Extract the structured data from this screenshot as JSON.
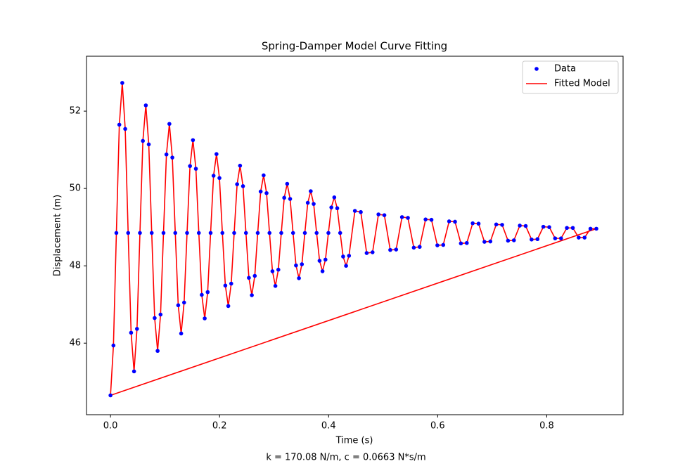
{
  "chart_data": {
    "type": "scatter-line",
    "title": "Spring-Damper Model Curve Fitting",
    "x_label": "Time (s)",
    "y_label": "Displacement (m)",
    "annotation": "k =  170.08 N/m, c =  0.0663 N*s/m",
    "xlim": [
      -0.044,
      0.94
    ],
    "ylim": [
      44.15,
      53.42
    ],
    "xticks": [
      {
        "value": 0,
        "label": "0.0"
      },
      {
        "value": 0.2,
        "label": "0.2"
      },
      {
        "value": 0.4,
        "label": "0.4"
      },
      {
        "value": 0.6,
        "label": "0.6"
      },
      {
        "value": 0.8,
        "label": "0.8"
      }
    ],
    "yticks": [
      46,
      48,
      50,
      52
    ],
    "legend": "upper right",
    "series": [
      {
        "name": "Data",
        "type": "scatter",
        "color": "#0000ff",
        "x": [
          0,
          0.0054,
          0.0108,
          0.0162,
          0.0216,
          0.027,
          0.0324,
          0.0378,
          0.0432,
          0.0486,
          0.054,
          0.0594,
          0.0648,
          0.0702,
          0.0756,
          0.081,
          0.0864,
          0.0918,
          0.0972,
          0.1026,
          0.108,
          0.1134,
          0.1188,
          0.1242,
          0.1296,
          0.135,
          0.1404,
          0.1458,
          0.1512,
          0.1566,
          0.162,
          0.1674,
          0.1728,
          0.1782,
          0.1836,
          0.189,
          0.1944,
          0.1998,
          0.2052,
          0.2106,
          0.216,
          0.2214,
          0.2268,
          0.2322,
          0.2376,
          0.243,
          0.2484,
          0.2538,
          0.2592,
          0.2646,
          0.27,
          0.2754,
          0.2808,
          0.2862,
          0.2916,
          0.297,
          0.3024,
          0.3078,
          0.3132,
          0.3186,
          0.324,
          0.3294,
          0.3348,
          0.3402,
          0.3456,
          0.351,
          0.3564,
          0.3618,
          0.3672,
          0.3726,
          0.378,
          0.3834,
          0.3888,
          0.3942,
          0.3996,
          0.405,
          0.4104,
          0.4158,
          0.4212,
          0.4266,
          0.432,
          0.4374,
          0.4482,
          0.459,
          0.4698,
          0.4806,
          0.4914,
          0.5022,
          0.513,
          0.5238,
          0.5346,
          0.5454,
          0.5562,
          0.567,
          0.5778,
          0.5886,
          0.5994,
          0.6102,
          0.621,
          0.6318,
          0.6426,
          0.6534,
          0.6642,
          0.675,
          0.6858,
          0.6966,
          0.7074,
          0.7182,
          0.729,
          0.7398,
          0.7506,
          0.7614,
          0.7722,
          0.783,
          0.7938,
          0.8046,
          0.8154,
          0.8262,
          0.837,
          0.8478,
          0.8586,
          0.8694,
          0.8802,
          0.891
        ],
        "values": [
          44.65,
          45.94,
          48.85,
          51.65,
          52.73,
          51.54,
          48.85,
          46.27,
          45.27,
          46.37,
          48.85,
          51.23,
          52.15,
          51.14,
          48.85,
          46.65,
          45.8,
          46.74,
          48.85,
          50.88,
          51.67,
          50.8,
          48.85,
          46.98,
          46.25,
          47.05,
          48.85,
          50.58,
          51.25,
          50.51,
          48.85,
          47.25,
          46.64,
          47.32,
          48.85,
          50.33,
          50.89,
          50.27,
          48.85,
          47.49,
          46.96,
          47.54,
          48.85,
          50.11,
          50.59,
          50.06,
          48.85,
          47.69,
          47.24,
          47.74,
          48.85,
          49.92,
          50.34,
          49.88,
          48.85,
          47.86,
          47.48,
          47.9,
          48.85,
          49.76,
          50.12,
          49.73,
          48.85,
          48.01,
          47.68,
          48.04,
          48.85,
          49.63,
          49.93,
          49.6,
          48.85,
          48.13,
          47.86,
          48.16,
          48.85,
          49.51,
          49.77,
          49.49,
          48.85,
          48.24,
          48.0,
          48.26,
          49.42,
          49.39,
          48.33,
          48.35,
          49.33,
          49.31,
          48.41,
          48.42,
          49.26,
          49.24,
          48.47,
          48.49,
          49.2,
          49.19,
          48.53,
          48.54,
          49.15,
          49.14,
          48.58,
          48.59,
          49.1,
          49.09,
          48.62,
          48.63,
          49.07,
          49.06,
          48.65,
          48.66,
          49.04,
          49.03,
          48.68,
          48.69,
          49.01,
          49.0,
          48.71,
          48.71,
          48.98,
          48.98,
          48.73,
          48.73,
          48.96,
          48.96
        ]
      },
      {
        "name": "Fitted Model",
        "type": "line",
        "color": "#ff0000",
        "x": [
          0,
          0.0054,
          0.0108,
          0.0162,
          0.0216,
          0.027,
          0.0324,
          0.0378,
          0.0432,
          0.0486,
          0.054,
          0.0594,
          0.0648,
          0.0702,
          0.0756,
          0.081,
          0.0864,
          0.0918,
          0.0972,
          0.1026,
          0.108,
          0.1134,
          0.1188,
          0.1242,
          0.1296,
          0.135,
          0.1404,
          0.1458,
          0.1512,
          0.1566,
          0.162,
          0.1674,
          0.1728,
          0.1782,
          0.1836,
          0.189,
          0.1944,
          0.1998,
          0.2052,
          0.2106,
          0.216,
          0.2214,
          0.2268,
          0.2322,
          0.2376,
          0.243,
          0.2484,
          0.2538,
          0.2592,
          0.2646,
          0.27,
          0.2754,
          0.2808,
          0.2862,
          0.2916,
          0.297,
          0.3024,
          0.3078,
          0.3132,
          0.3186,
          0.324,
          0.3294,
          0.3348,
          0.3402,
          0.3456,
          0.351,
          0.3564,
          0.3618,
          0.3672,
          0.3726,
          0.378,
          0.3834,
          0.3888,
          0.3942,
          0.3996,
          0.405,
          0.4104,
          0.4158,
          0.4212,
          0.4266,
          0.432,
          0.4374,
          0.4482,
          0.459,
          0.4698,
          0.4806,
          0.4914,
          0.5022,
          0.513,
          0.5238,
          0.5346,
          0.5454,
          0.5562,
          0.567,
          0.5778,
          0.5886,
          0.5994,
          0.6102,
          0.621,
          0.6318,
          0.6426,
          0.6534,
          0.6642,
          0.675,
          0.6858,
          0.6966,
          0.7074,
          0.7182,
          0.729,
          0.7398,
          0.7506,
          0.7614,
          0.7722,
          0.783,
          0.7938,
          0.8046,
          0.8154,
          0.8262,
          0.837,
          0.8478,
          0.8586,
          0.8694,
          0.8802,
          0.891,
          0
        ],
        "values": [
          44.65,
          45.94,
          48.85,
          51.65,
          52.73,
          51.54,
          48.85,
          46.27,
          45.27,
          46.37,
          48.85,
          51.23,
          52.15,
          51.14,
          48.85,
          46.65,
          45.8,
          46.74,
          48.85,
          50.88,
          51.67,
          50.8,
          48.85,
          46.98,
          46.25,
          47.05,
          48.85,
          50.58,
          51.25,
          50.51,
          48.85,
          47.25,
          46.64,
          47.32,
          48.85,
          50.33,
          50.89,
          50.27,
          48.85,
          47.49,
          46.96,
          47.54,
          48.85,
          50.11,
          50.59,
          50.06,
          48.85,
          47.69,
          47.24,
          47.74,
          48.85,
          49.92,
          50.34,
          49.88,
          48.85,
          47.86,
          47.48,
          47.9,
          48.85,
          49.76,
          50.12,
          49.73,
          48.85,
          48.01,
          47.68,
          48.04,
          48.85,
          49.63,
          49.93,
          49.6,
          48.85,
          48.13,
          47.86,
          48.16,
          48.85,
          49.51,
          49.77,
          49.49,
          48.85,
          48.24,
          48.0,
          48.26,
          49.42,
          49.39,
          48.33,
          48.35,
          49.33,
          49.31,
          48.41,
          48.42,
          49.26,
          49.24,
          48.47,
          48.49,
          49.2,
          49.19,
          48.53,
          48.54,
          49.15,
          49.14,
          48.58,
          48.59,
          49.1,
          49.09,
          48.62,
          48.63,
          49.07,
          49.06,
          48.65,
          48.66,
          49.04,
          49.03,
          48.68,
          48.69,
          49.01,
          49.0,
          48.71,
          48.71,
          48.98,
          48.98,
          48.73,
          48.73,
          48.96,
          48.96,
          44.65
        ]
      }
    ]
  }
}
